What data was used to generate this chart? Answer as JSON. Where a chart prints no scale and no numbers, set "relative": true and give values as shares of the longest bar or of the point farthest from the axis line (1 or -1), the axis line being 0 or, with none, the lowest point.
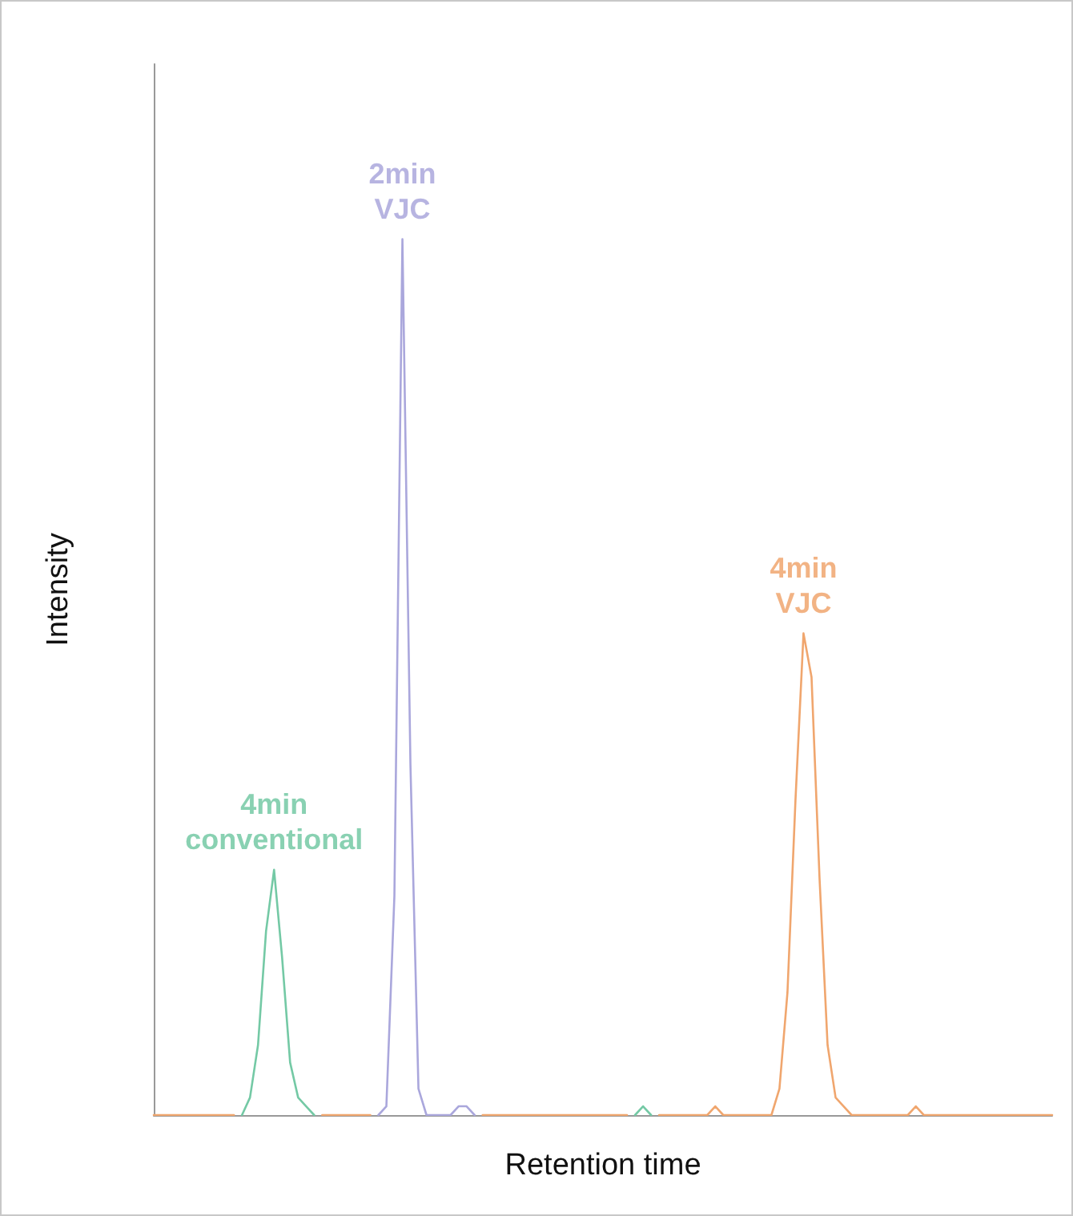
{
  "chart_data": {
    "type": "line",
    "relative": true,
    "xlabel": "Retention time",
    "ylabel": "Intensity",
    "legend": false,
    "grid": false,
    "marker": "none",
    "categories": [
      null,
      null,
      null,
      null,
      null,
      null,
      null,
      null,
      null,
      null,
      null,
      null,
      null,
      null,
      null,
      null,
      null,
      null,
      null,
      null,
      null,
      null,
      null,
      null,
      null,
      null,
      null,
      null,
      null,
      null,
      null,
      null,
      null,
      null,
      null,
      null,
      null,
      null,
      null,
      null,
      null,
      null,
      null,
      null,
      null,
      null,
      null,
      null,
      null,
      null,
      null,
      null,
      null,
      null,
      null,
      null,
      null,
      null,
      null,
      null,
      null,
      null,
      null,
      null,
      null,
      null,
      null,
      null,
      null,
      null,
      null,
      null,
      null,
      null,
      null,
      null,
      null,
      null,
      null,
      null,
      null,
      null,
      null,
      null,
      null,
      null,
      null,
      null,
      null,
      null,
      null,
      null,
      null,
      null,
      null,
      null,
      null,
      null,
      null,
      null,
      null,
      null,
      null,
      null,
      null,
      null,
      null,
      null,
      null,
      null,
      null,
      null,
      null
    ],
    "series": [
      {
        "name": "4min conventional",
        "color": "#74c9a5",
        "values": [
          null,
          null,
          null,
          null,
          null,
          null,
          null,
          null,
          null,
          null,
          null,
          0,
          0.02,
          0.08,
          0.21,
          0.28,
          0.18,
          0.06,
          0.02,
          0.01,
          0,
          null,
          null,
          null,
          null,
          null,
          null,
          null,
          null,
          null,
          null,
          null,
          null,
          null,
          null,
          null,
          null,
          null,
          null,
          null,
          null,
          null,
          null,
          null,
          null,
          null,
          null,
          null,
          null,
          null,
          null,
          null,
          null,
          null,
          null,
          null,
          null,
          null,
          null,
          null,
          0,
          0.01,
          0,
          null,
          null,
          null,
          null,
          null,
          null,
          null,
          null,
          null,
          null,
          null,
          null,
          null,
          null,
          null,
          null,
          null,
          null,
          null,
          null,
          null,
          null,
          null,
          null,
          null,
          null,
          null,
          null,
          null,
          null,
          null,
          null,
          null,
          null,
          null,
          null,
          null,
          null,
          null,
          null,
          null,
          null,
          null,
          null,
          null,
          null,
          null,
          null,
          null,
          null
        ]
      },
      {
        "name": "2min VJC",
        "color": "#aaa7dc",
        "values": [
          null,
          null,
          null,
          null,
          null,
          null,
          null,
          null,
          null,
          null,
          null,
          null,
          null,
          null,
          null,
          null,
          null,
          null,
          null,
          null,
          null,
          null,
          null,
          null,
          null,
          null,
          null,
          null,
          0,
          0.01,
          0.25,
          1,
          0.4,
          0.03,
          0,
          0,
          0,
          0,
          0.01,
          0.01,
          0,
          null,
          null,
          null,
          null,
          null,
          null,
          null,
          null,
          null,
          null,
          null,
          null,
          null,
          null,
          null,
          null,
          null,
          null,
          null,
          null,
          null,
          null,
          null,
          null,
          null,
          null,
          null,
          null,
          null,
          null,
          null,
          null,
          null,
          null,
          null,
          null,
          null,
          null,
          null,
          null,
          null,
          null,
          null,
          null,
          null,
          null,
          null,
          null,
          null,
          null,
          null,
          null,
          null,
          null,
          null,
          null,
          null,
          null,
          null,
          null,
          null,
          null,
          null,
          null,
          null,
          null,
          null,
          null,
          null,
          null,
          null,
          null
        ]
      },
      {
        "name": "4min VJC",
        "color": "#f0a66e",
        "values": [
          0,
          0,
          0,
          0,
          0,
          0,
          0,
          0,
          0,
          0,
          0,
          null,
          null,
          null,
          null,
          null,
          null,
          null,
          null,
          null,
          null,
          0,
          0,
          0,
          0,
          0,
          0,
          0,
          null,
          null,
          null,
          null,
          null,
          null,
          null,
          null,
          null,
          null,
          null,
          null,
          null,
          0,
          0,
          0,
          0,
          0,
          0,
          0,
          0,
          0,
          0,
          0,
          0,
          0,
          0,
          0,
          0,
          0,
          0,
          0,
          null,
          null,
          null,
          0,
          0,
          0,
          0,
          0,
          0,
          0,
          0.01,
          0,
          0,
          0,
          0,
          0,
          0,
          0,
          0.03,
          0.14,
          0.36,
          0.55,
          0.5,
          0.27,
          0.08,
          0.02,
          0.01,
          0,
          0,
          0,
          0,
          0,
          0,
          0,
          0,
          0.01,
          0,
          0,
          0,
          0,
          0,
          0,
          0,
          0,
          0,
          0,
          0,
          0,
          0,
          0,
          0,
          0,
          0
        ]
      }
    ]
  }
}
